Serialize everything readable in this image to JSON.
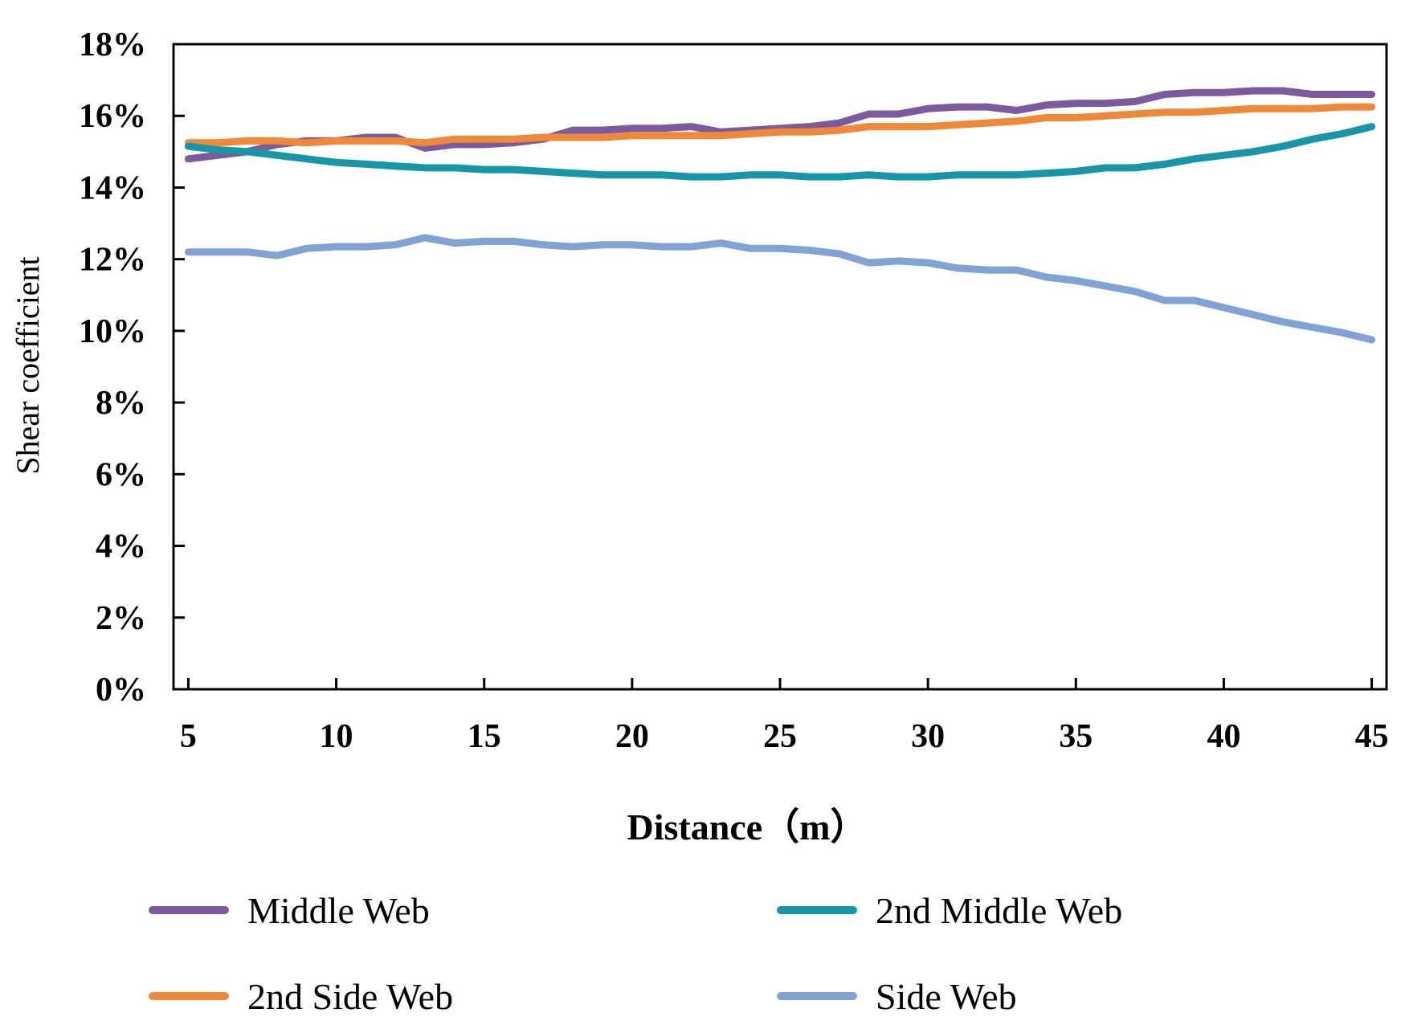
{
  "chart_data": {
    "type": "line",
    "title": "",
    "xlabel": "Distance（m）",
    "ylabel": "Shear coefficient",
    "xlim": [
      4.5,
      45.5
    ],
    "ylim": [
      0,
      18
    ],
    "x_ticks": [
      5,
      10,
      15,
      20,
      25,
      30,
      35,
      40,
      45
    ],
    "x_tick_labels": [
      "5",
      "10",
      "15",
      "20",
      "25",
      "30",
      "35",
      "40",
      "45"
    ],
    "y_ticks": [
      0,
      2,
      4,
      6,
      8,
      10,
      12,
      14,
      16,
      18
    ],
    "y_tick_labels": [
      "0%",
      "2%",
      "4%",
      "6%",
      "8%",
      "10%",
      "12%",
      "14%",
      "16%",
      "18%"
    ],
    "grid": false,
    "legend_position": "bottom",
    "x": [
      5,
      6,
      7,
      8,
      9,
      10,
      11,
      12,
      13,
      14,
      15,
      16,
      17,
      18,
      19,
      20,
      21,
      22,
      23,
      24,
      25,
      26,
      27,
      28,
      29,
      30,
      31,
      32,
      33,
      34,
      35,
      36,
      37,
      38,
      39,
      40,
      41,
      42,
      43,
      44,
      45
    ],
    "series": [
      {
        "name": "Middle Web",
        "color": "#7b5a9e",
        "values": [
          14.8,
          14.9,
          15.0,
          15.2,
          15.3,
          15.3,
          15.4,
          15.4,
          15.1,
          15.2,
          15.2,
          15.25,
          15.35,
          15.6,
          15.6,
          15.65,
          15.65,
          15.7,
          15.55,
          15.6,
          15.65,
          15.7,
          15.8,
          16.05,
          16.05,
          16.2,
          16.25,
          16.25,
          16.15,
          16.3,
          16.35,
          16.35,
          16.4,
          16.6,
          16.65,
          16.65,
          16.7,
          16.7,
          16.6,
          16.6,
          16.6
        ]
      },
      {
        "name": "2nd Side Web",
        "color": "#f0883a",
        "values": [
          15.25,
          15.25,
          15.3,
          15.3,
          15.25,
          15.3,
          15.3,
          15.3,
          15.25,
          15.35,
          15.35,
          15.35,
          15.4,
          15.4,
          15.4,
          15.45,
          15.45,
          15.45,
          15.45,
          15.5,
          15.55,
          15.55,
          15.6,
          15.7,
          15.7,
          15.7,
          15.75,
          15.8,
          15.85,
          15.95,
          15.95,
          16.0,
          16.05,
          16.1,
          16.1,
          16.15,
          16.2,
          16.2,
          16.2,
          16.25,
          16.25
        ]
      },
      {
        "name": "2nd Middle Web",
        "color": "#1797a6",
        "values": [
          15.15,
          15.05,
          15.0,
          14.9,
          14.8,
          14.7,
          14.65,
          14.6,
          14.55,
          14.55,
          14.5,
          14.5,
          14.45,
          14.4,
          14.35,
          14.35,
          14.35,
          14.3,
          14.3,
          14.35,
          14.35,
          14.3,
          14.3,
          14.35,
          14.3,
          14.3,
          14.35,
          14.35,
          14.35,
          14.4,
          14.45,
          14.55,
          14.55,
          14.65,
          14.8,
          14.9,
          15.0,
          15.15,
          15.35,
          15.5,
          15.7
        ]
      },
      {
        "name": "Side Web",
        "color": "#7ea3d4",
        "values": [
          12.2,
          12.2,
          12.2,
          12.1,
          12.3,
          12.35,
          12.35,
          12.4,
          12.6,
          12.45,
          12.5,
          12.5,
          12.4,
          12.35,
          12.4,
          12.4,
          12.35,
          12.35,
          12.45,
          12.3,
          12.3,
          12.25,
          12.15,
          11.9,
          11.95,
          11.9,
          11.75,
          11.7,
          11.7,
          11.5,
          11.4,
          11.25,
          11.1,
          10.85,
          10.85,
          10.65,
          10.45,
          10.25,
          10.1,
          9.95,
          9.75
        ]
      }
    ]
  }
}
